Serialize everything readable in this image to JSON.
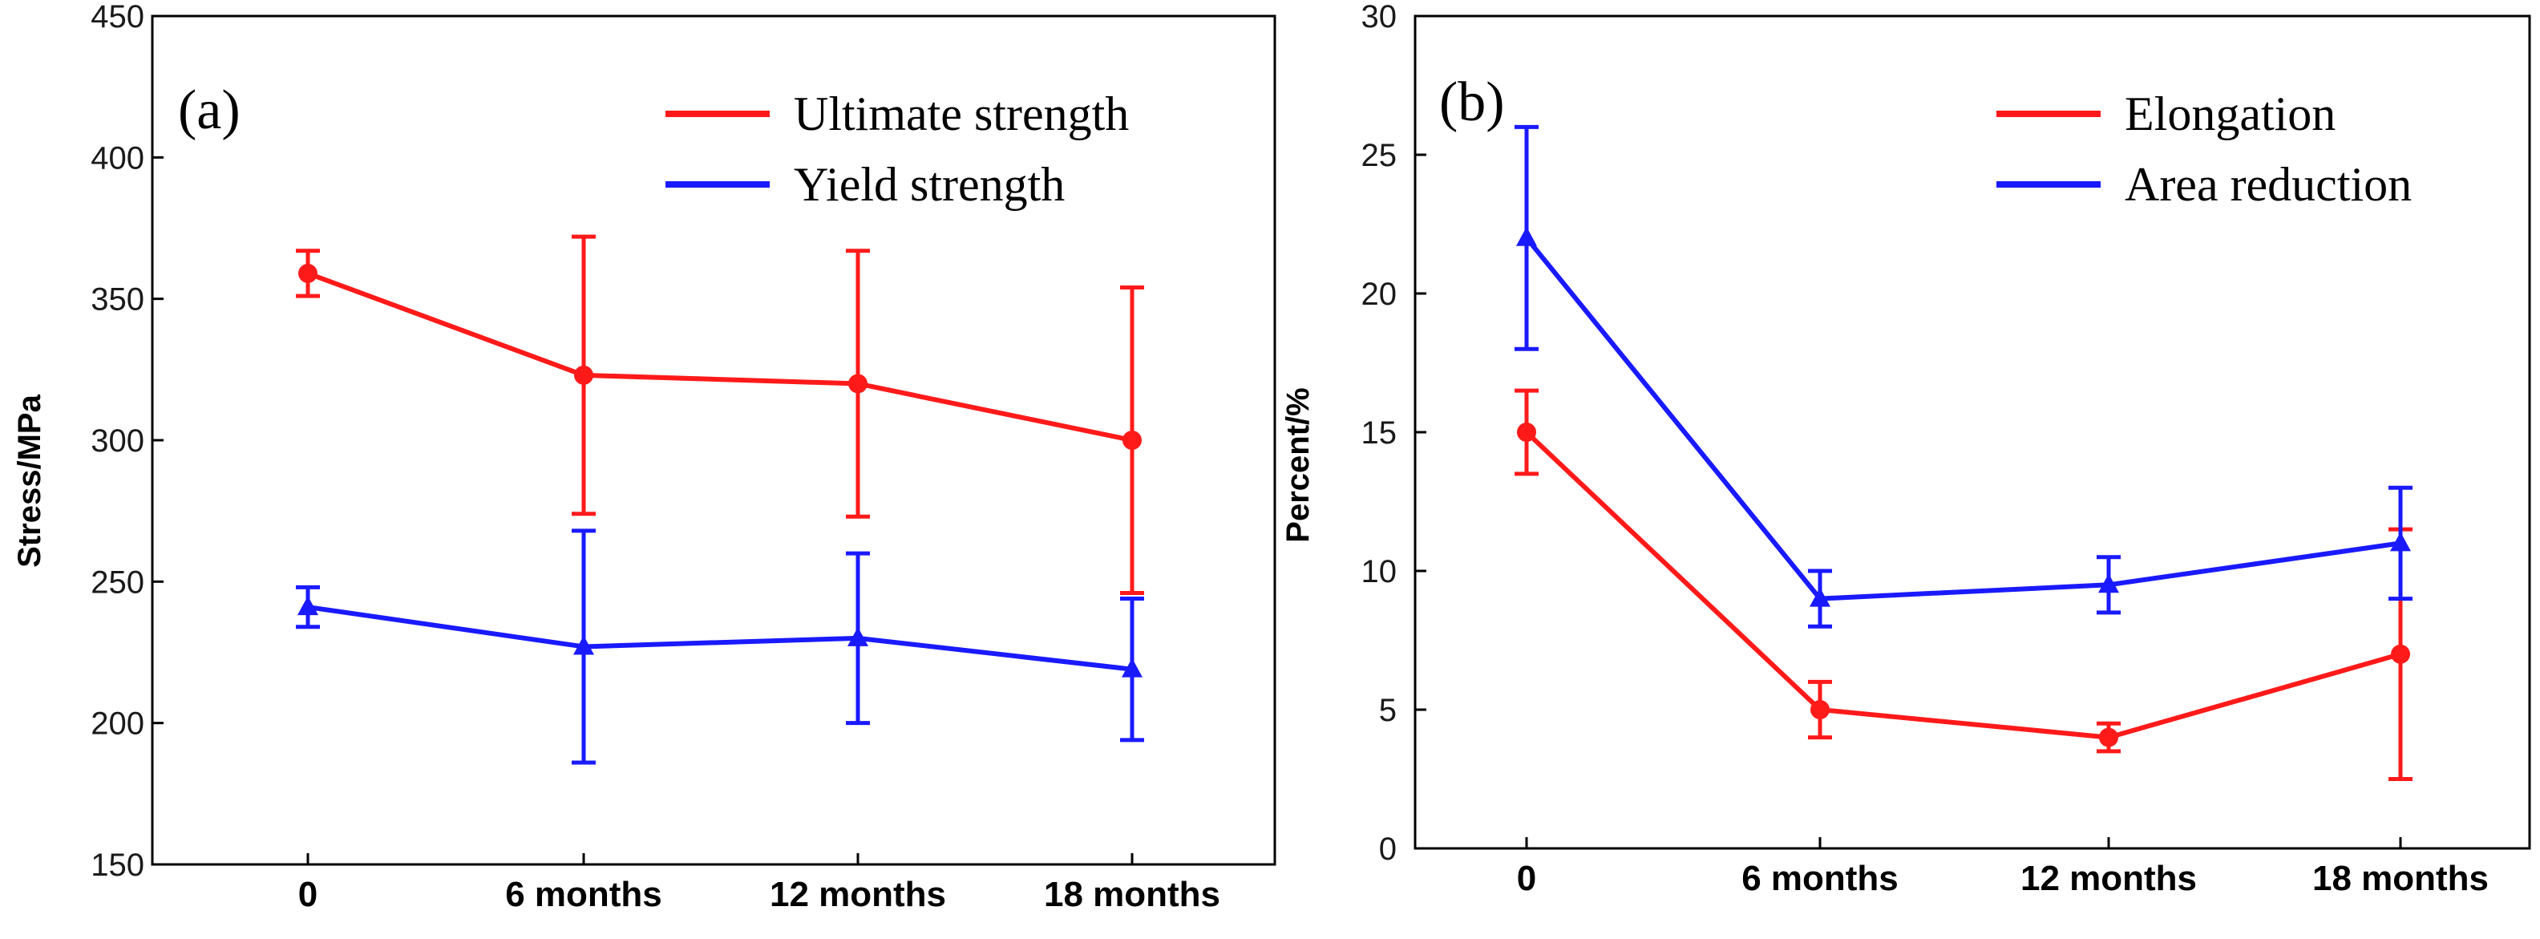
{
  "chart_data": [
    {
      "type": "line",
      "panel_label": "(a)",
      "title": "",
      "xlabel": "",
      "ylabel": "Stress/MPa",
      "categories": [
        "0",
        "6 months",
        "12 months",
        "18 months"
      ],
      "ylim": [
        150,
        450
      ],
      "yticks": [
        150,
        200,
        250,
        300,
        350,
        400,
        450
      ],
      "grid": false,
      "legend_position": "top-right",
      "series": [
        {
          "name": "Ultimate strength",
          "color": "#ff1a1a",
          "marker": "circle",
          "values": [
            359,
            323,
            320,
            300
          ],
          "err_low": [
            351,
            274,
            273,
            246
          ],
          "err_high": [
            367,
            372,
            367,
            354
          ]
        },
        {
          "name": "Yield strength",
          "color": "#1a1aff",
          "marker": "triangle",
          "values": [
            241,
            227,
            230,
            219
          ],
          "err_low": [
            234,
            186,
            200,
            194
          ],
          "err_high": [
            248,
            268,
            260,
            244
          ]
        }
      ]
    },
    {
      "type": "line",
      "panel_label": "(b)",
      "title": "",
      "xlabel": "",
      "ylabel": "Percent/%",
      "categories": [
        "0",
        "6 months",
        "12 months",
        "18 months"
      ],
      "ylim": [
        0,
        30
      ],
      "yticks": [
        0,
        5,
        10,
        15,
        20,
        25,
        30
      ],
      "grid": false,
      "legend_position": "top-right",
      "series": [
        {
          "name": "Elongation",
          "color": "#ff1a1a",
          "marker": "circle",
          "values": [
            15,
            5,
            4,
            7
          ],
          "err_low": [
            13.5,
            4,
            3.5,
            2.5
          ],
          "err_high": [
            16.5,
            6,
            4.5,
            11.5
          ]
        },
        {
          "name": "Area reduction",
          "color": "#1a1aff",
          "marker": "triangle",
          "values": [
            22,
            9,
            9.5,
            11
          ],
          "err_low": [
            18,
            8,
            8.5,
            9
          ],
          "err_high": [
            26,
            10,
            10.5,
            13
          ]
        }
      ]
    }
  ]
}
